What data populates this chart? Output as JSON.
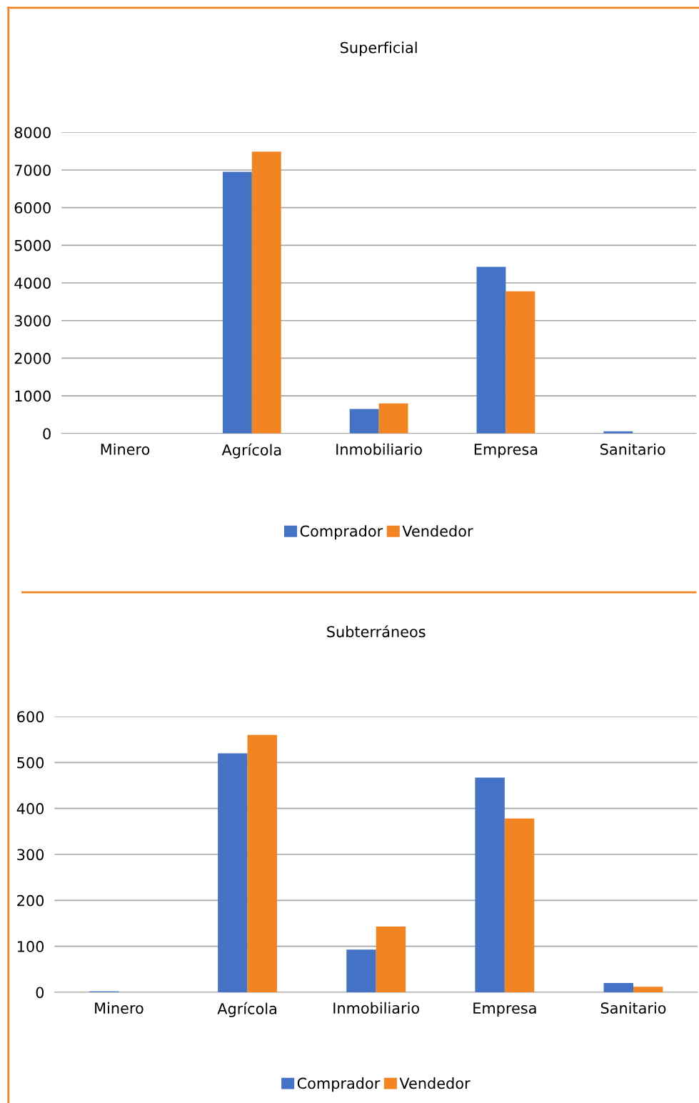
{
  "chart_data": [
    {
      "type": "bar",
      "title": "Superficial",
      "categories": [
        "Minero",
        "Agrícola",
        "Inmobiliario",
        "Empresa",
        "Sanitario"
      ],
      "series": [
        {
          "name": "Comprador",
          "color": "#4472c4",
          "values": [
            0,
            6950,
            650,
            4430,
            60
          ]
        },
        {
          "name": "Vendedor",
          "color": "#f28522",
          "values": [
            0,
            7490,
            800,
            3780,
            0
          ]
        }
      ],
      "ylim": [
        0,
        8000
      ],
      "yticks": [
        0,
        1000,
        2000,
        3000,
        4000,
        5000,
        6000,
        7000,
        8000
      ],
      "grid": "y",
      "legend": "bottom"
    },
    {
      "type": "bar",
      "title": "Subterráneos",
      "categories": [
        "Minero",
        "Agrícola",
        "Inmobiliario",
        "Empresa",
        "Sanitario"
      ],
      "series": [
        {
          "name": "Comprador",
          "color": "#4472c4",
          "values": [
            2,
            520,
            93,
            467,
            20
          ]
        },
        {
          "name": "Vendedor",
          "color": "#f28522",
          "values": [
            0,
            560,
            143,
            378,
            12
          ]
        }
      ],
      "ylim": [
        0,
        600
      ],
      "yticks": [
        0,
        100,
        200,
        300,
        400,
        500,
        600
      ],
      "grid": "y",
      "legend": "bottom"
    }
  ]
}
